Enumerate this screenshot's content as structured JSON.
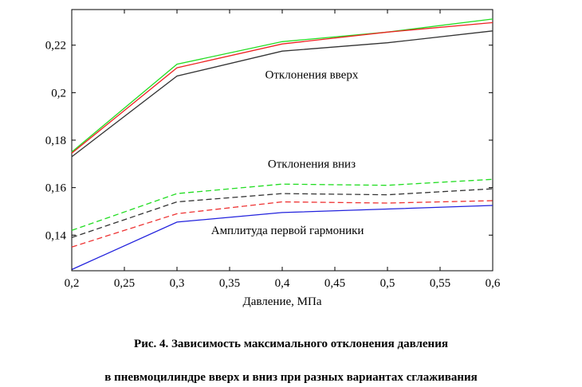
{
  "chart_data": {
    "type": "line",
    "xlabel": "Давление, МПа",
    "ylabel": "",
    "xlim": [
      0.2,
      0.6
    ],
    "ylim": [
      0.125,
      0.235
    ],
    "xticks": [
      {
        "v": 0.2,
        "label": "0,2"
      },
      {
        "v": 0.25,
        "label": "0,25"
      },
      {
        "v": 0.3,
        "label": "0,3"
      },
      {
        "v": 0.35,
        "label": "0,35"
      },
      {
        "v": 0.4,
        "label": "0,4"
      },
      {
        "v": 0.45,
        "label": "0,45"
      },
      {
        "v": 0.5,
        "label": "0,5"
      },
      {
        "v": 0.55,
        "label": "0,55"
      },
      {
        "v": 0.6,
        "label": "0,6"
      }
    ],
    "yticks": [
      {
        "v": 0.14,
        "label": "0,14"
      },
      {
        "v": 0.16,
        "label": "0,16"
      },
      {
        "v": 0.18,
        "label": "0,18"
      },
      {
        "v": 0.2,
        "label": "0,2"
      },
      {
        "v": 0.22,
        "label": "0,22"
      }
    ],
    "grid": false,
    "x": [
      0.2,
      0.3,
      0.4,
      0.5,
      0.6
    ],
    "series": [
      {
        "color": "#22dd22",
        "dash": false,
        "values": [
          0.175,
          0.212,
          0.2215,
          0.2255,
          0.231
        ]
      },
      {
        "color": "#ee2222",
        "dash": false,
        "values": [
          0.1745,
          0.2105,
          0.2205,
          0.2255,
          0.2295
        ]
      },
      {
        "color": "#333333",
        "dash": false,
        "values": [
          0.173,
          0.207,
          0.2175,
          0.221,
          0.226
        ]
      },
      {
        "color": "#22dd22",
        "dash": true,
        "values": [
          0.142,
          0.1575,
          0.1615,
          0.161,
          0.1635
        ]
      },
      {
        "color": "#333333",
        "dash": true,
        "values": [
          0.139,
          0.154,
          0.1575,
          0.157,
          0.1595
        ]
      },
      {
        "color": "#ee3333",
        "dash": true,
        "values": [
          0.135,
          0.149,
          0.154,
          0.1535,
          0.1545
        ]
      },
      {
        "color": "#2222dd",
        "dash": false,
        "values": [
          0.1255,
          0.1455,
          0.1495,
          0.151,
          0.1525
        ]
      }
    ],
    "annotations": [
      {
        "text": "Отклонения вверх",
        "x": 0.428,
        "y": 0.206
      },
      {
        "text": "Отклонения вниз",
        "x": 0.428,
        "y": 0.1685
      },
      {
        "text": "Амплитуда первой гармоники",
        "x": 0.405,
        "y": 0.1405
      }
    ]
  },
  "caption": {
    "line1": "Рис. 4.  Зависимость максимального отклонения давления",
    "line2": "в пневмоцилиндре вверх и вниз при разных вариантах сглаживания"
  }
}
